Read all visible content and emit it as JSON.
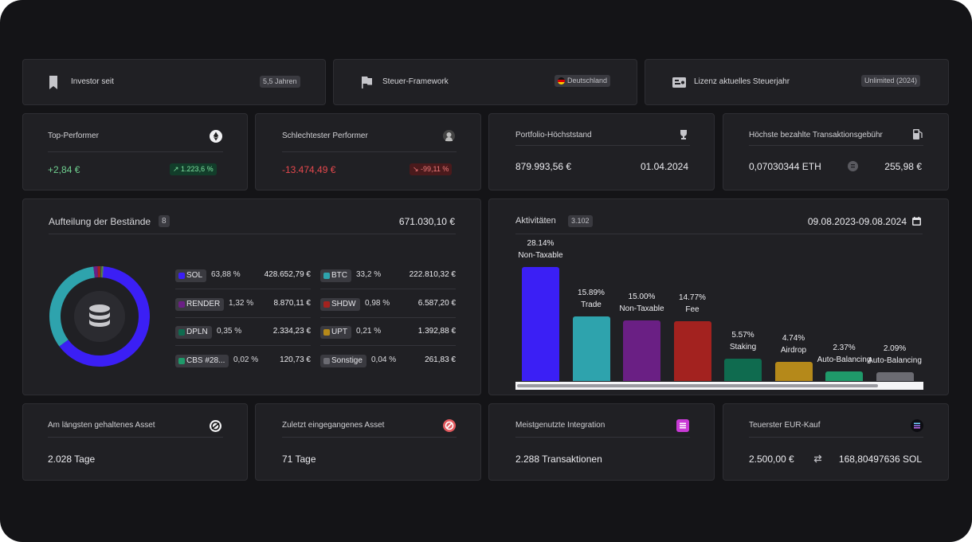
{
  "info_cards": [
    {
      "label": "Investor seit",
      "badge": "5,5 Jahren"
    },
    {
      "label": "Steuer-Framework",
      "badge": "Deutschland"
    },
    {
      "label": "Lizenz aktuelles Steuerjahr",
      "badge": "Unlimited (2024)"
    }
  ],
  "stats": {
    "top_performer": {
      "title": "Top-Performer",
      "value": "+2,84 €",
      "change": "↗ 1.223,6 %"
    },
    "worst_performer": {
      "title": "Schlechtester Performer",
      "value": "-13.474,49 €",
      "change": "↘ -99,11 %"
    },
    "portfolio_peak": {
      "title": "Portfolio-Höchststand",
      "value": "879.993,56 €",
      "date": "01.04.2024"
    },
    "highest_fee": {
      "title": "Höchste bezahlte Transaktionsgebühr",
      "value": "0,07030344 ETH",
      "eur": "255,98 €"
    }
  },
  "holdings": {
    "title": "Aufteilung der Bestände",
    "count": "8",
    "total": "671.030,10 €",
    "items": [
      {
        "name": "SOL",
        "pct": "63,88 %",
        "amount": "428.652,79 €",
        "color": "#3b1ff5"
      },
      {
        "name": "BTC",
        "pct": "33,2 %",
        "amount": "222.810,32 €",
        "color": "#2ea3ad"
      },
      {
        "name": "RENDER",
        "pct": "1,32 %",
        "amount": "8.870,11 €",
        "color": "#6a1f84"
      },
      {
        "name": "SHDW",
        "pct": "0,98 %",
        "amount": "6.587,20 €",
        "color": "#a3221f"
      },
      {
        "name": "DPLN",
        "pct": "0,35 %",
        "amount": "2.334,23 €",
        "color": "#0f6b4f"
      },
      {
        "name": "UPT",
        "pct": "0,21 %",
        "amount": "1.392,88 €",
        "color": "#b5891a"
      },
      {
        "name": "CBS #28...",
        "pct": "0,02 %",
        "amount": "120,73 €",
        "color": "#1f9a6a"
      },
      {
        "name": "Sonstige",
        "pct": "0,04 %",
        "amount": "261,83 €",
        "color": "#6b6b72"
      }
    ],
    "donut_fractions": [
      0.6388,
      0.332,
      0.0132,
      0.0098,
      0.0035,
      0.0021,
      0.0002,
      0.0004
    ]
  },
  "activities": {
    "title": "Aktivitäten",
    "count": "3.102",
    "date_range": "09.08.2023-09.08.2024"
  },
  "chart_data": {
    "type": "bar",
    "categories": [
      "Non-Taxable",
      "Trade",
      "Non-Taxable",
      "Fee",
      "Staking",
      "Airdrop",
      "Auto-Balancing",
      "Auto-Balancing"
    ],
    "values": [
      28.14,
      15.89,
      15.0,
      14.77,
      5.57,
      4.74,
      2.37,
      2.09
    ],
    "labels": [
      "28.14%",
      "15.89%",
      "15.00%",
      "14.77%",
      "5.57%",
      "4.74%",
      "2.37%",
      "2.09%"
    ],
    "colors": [
      "#3b1ff5",
      "#2ea3ad",
      "#6a1f84",
      "#a3221f",
      "#0f6b4f",
      "#b5891a",
      "#1f9a6a",
      "#6b6b72"
    ]
  },
  "bottom": {
    "longest_held": {
      "title": "Am längsten gehaltenes Asset",
      "value": "2.028 Tage"
    },
    "last_received": {
      "title": "Zuletzt eingegangenes Asset",
      "value": "71 Tage"
    },
    "top_integration": {
      "title": "Meistgenutzte Integration",
      "value": "2.288 Transaktionen"
    },
    "priciest_buy": {
      "title": "Teuerster EUR-Kauf",
      "eur": "2.500,00 €",
      "sol": "168,80497636 SOL"
    }
  },
  "colors": {
    "positive": "#6fcf8f",
    "negative": "#e5484d"
  }
}
